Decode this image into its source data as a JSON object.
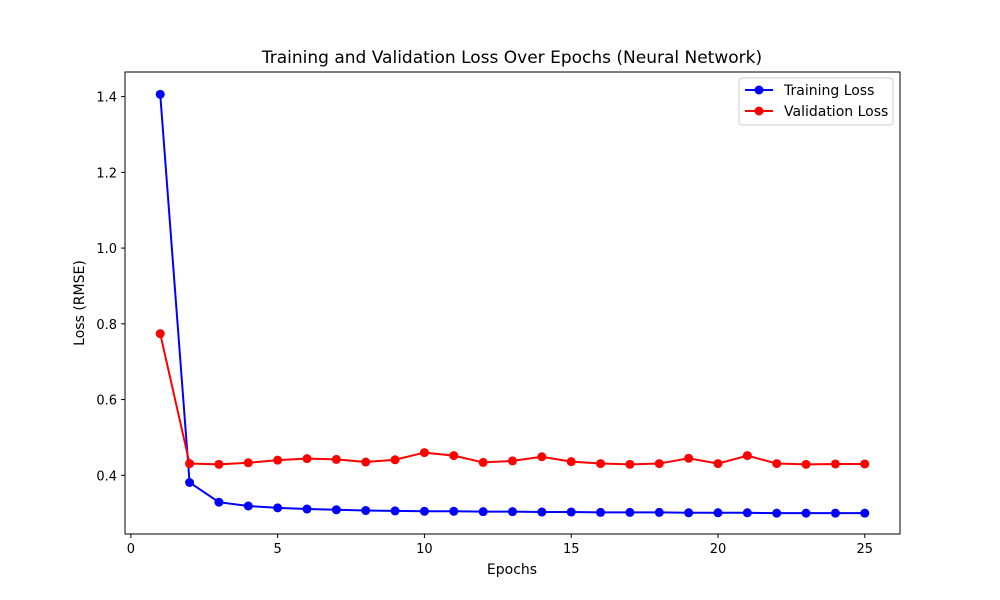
{
  "chart_data": {
    "type": "line",
    "title": "Training and Validation Loss Over Epochs (Neural Network)",
    "xlabel": "Epochs",
    "ylabel": "Loss (RMSE)",
    "xlim": [
      -0.2,
      26.2
    ],
    "ylim": [
      0.245,
      1.465
    ],
    "x_ticks": [
      0,
      5,
      10,
      15,
      20,
      25
    ],
    "y_ticks": [
      0.4,
      0.6,
      0.8,
      1.0,
      1.2,
      1.4
    ],
    "y_tick_labels": [
      "0.4",
      "0.6",
      "0.8",
      "1.0",
      "1.2",
      "1.4"
    ],
    "grid": false,
    "legend_position": "top-right",
    "x": [
      1,
      2,
      3,
      4,
      5,
      6,
      7,
      8,
      9,
      10,
      11,
      12,
      13,
      14,
      15,
      16,
      17,
      18,
      19,
      20,
      21,
      22,
      23,
      24,
      25
    ],
    "series": [
      {
        "name": "Training Loss",
        "color": "#0000ff",
        "values": [
          1.406,
          0.381,
          0.329,
          0.319,
          0.314,
          0.311,
          0.309,
          0.307,
          0.306,
          0.305,
          0.305,
          0.304,
          0.304,
          0.303,
          0.303,
          0.302,
          0.302,
          0.302,
          0.301,
          0.301,
          0.301,
          0.3,
          0.3,
          0.3,
          0.3
        ]
      },
      {
        "name": "Validation Loss",
        "color": "#ff0000",
        "values": [
          0.774,
          0.431,
          0.429,
          0.433,
          0.44,
          0.444,
          0.442,
          0.435,
          0.441,
          0.46,
          0.452,
          0.434,
          0.438,
          0.449,
          0.436,
          0.431,
          0.429,
          0.431,
          0.445,
          0.431,
          0.452,
          0.431,
          0.429,
          0.43,
          0.43
        ]
      }
    ]
  }
}
